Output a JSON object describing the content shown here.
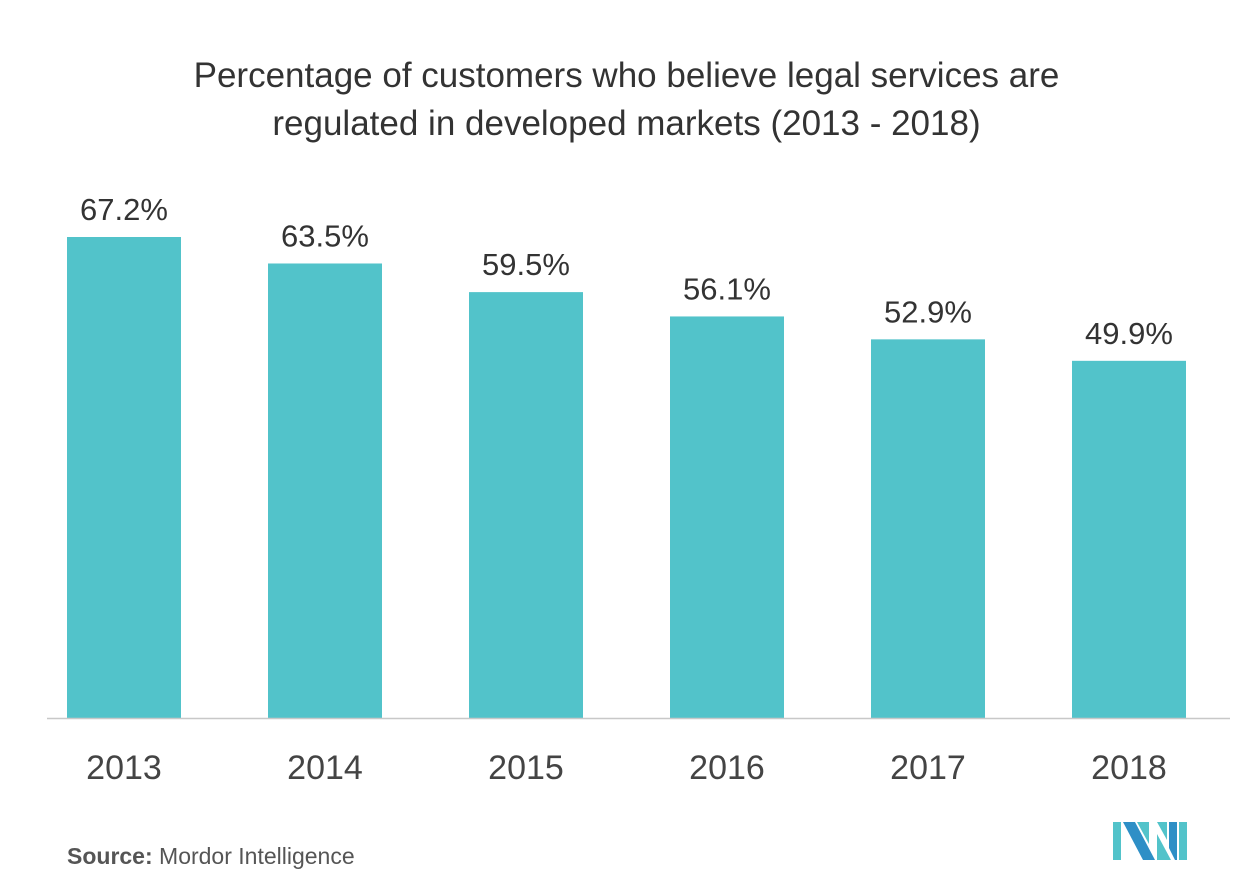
{
  "chart_data": {
    "type": "bar",
    "title": "Percentage of customers who believe legal services are regulated in developed markets (2013 - 2018)",
    "categories": [
      "2013",
      "2014",
      "2015",
      "2016",
      "2017",
      "2018"
    ],
    "values": [
      67.2,
      63.5,
      59.5,
      56.1,
      52.9,
      49.9
    ],
    "data_labels": [
      "67.2%",
      "63.5%",
      "59.5%",
      "56.1%",
      "52.9%",
      "49.9%"
    ],
    "xlabel": "",
    "ylabel": "",
    "ylim": [
      0,
      67.2
    ],
    "grid": false,
    "bar_color": "#52C3CA"
  },
  "source": {
    "label": "Source:",
    "text": "Mordor Intelligence"
  },
  "logo": {
    "text": "MI",
    "colors": [
      "#2E8FC6",
      "#52C3CA"
    ]
  }
}
